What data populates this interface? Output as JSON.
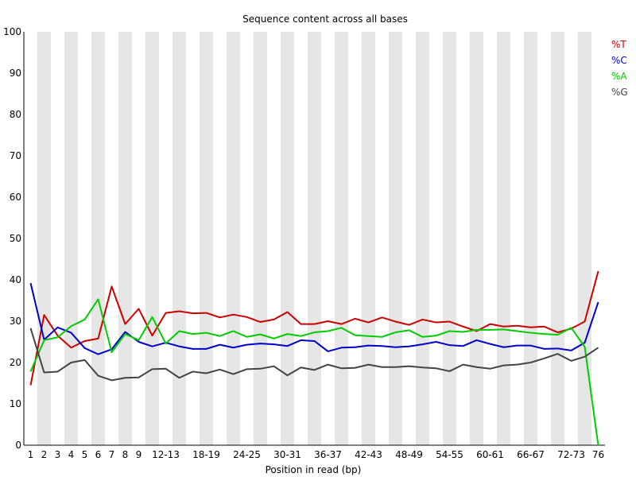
{
  "chart_data": {
    "type": "line",
    "title": "Sequence content across all bases",
    "xlabel": "Position in read (bp)",
    "ylabel": "",
    "ylim": [
      0,
      100
    ],
    "yticks": [
      0,
      10,
      20,
      30,
      40,
      50,
      60,
      70,
      80,
      90,
      100
    ],
    "grid": "alternating vertical bands",
    "legend_position": "top-right",
    "categories": [
      "1",
      "2",
      "3",
      "4",
      "5",
      "6",
      "7",
      "8",
      "9",
      "10-11",
      "12-13",
      "14-15",
      "16-17",
      "18-19",
      "20-21",
      "22-23",
      "24-25",
      "26-27",
      "28-29",
      "30-31",
      "32-33",
      "34-35",
      "36-37",
      "38-39",
      "40-41",
      "42-43",
      "44-45",
      "46-47",
      "48-49",
      "50-51",
      "52-53",
      "54-55",
      "56-57",
      "58-59",
      "60-61",
      "62-63",
      "64-65",
      "66-67",
      "68-69",
      "70-71",
      "72-73",
      "74-75",
      "76"
    ],
    "tick_labels": [
      "1",
      "2",
      "3",
      "4",
      "5",
      "6",
      "7",
      "8",
      "9",
      "12-13",
      "18-19",
      "24-25",
      "30-31",
      "36-37",
      "42-43",
      "48-49",
      "54-55",
      "60-61",
      "66-67",
      "72-73",
      "76"
    ],
    "series": [
      {
        "name": "%T",
        "color": "#cc0000",
        "values": [
          14.5,
          31.5,
          26.5,
          23.6,
          25.2,
          25.8,
          38.4,
          29.3,
          33.0,
          26.5,
          32.0,
          32.4,
          31.9,
          32.0,
          30.9,
          31.6,
          31.0,
          29.8,
          30.4,
          32.2,
          29.3,
          29.3,
          30.0,
          29.3,
          30.6,
          29.7,
          30.9,
          29.9,
          29.1,
          30.4,
          29.7,
          29.9,
          28.7,
          27.6,
          29.3,
          28.7,
          28.9,
          28.5,
          28.7,
          27.3,
          28.2,
          29.9,
          42.1
        ]
      },
      {
        "name": "%C",
        "color": "#0000cc",
        "values": [
          39.2,
          25.5,
          28.5,
          27.2,
          23.5,
          22.0,
          23.2,
          27.4,
          25.0,
          23.9,
          24.8,
          23.9,
          23.3,
          23.3,
          24.3,
          23.6,
          24.3,
          24.6,
          24.4,
          24.0,
          25.4,
          25.2,
          22.7,
          23.6,
          23.7,
          24.1,
          24.0,
          23.7,
          23.9,
          24.4,
          25.0,
          24.2,
          24.0,
          25.4,
          24.5,
          23.7,
          24.1,
          24.1,
          23.3,
          23.4,
          22.9,
          24.8,
          34.6
        ]
      },
      {
        "name": "%A",
        "color": "#00cc00",
        "values": [
          17.8,
          25.4,
          26.1,
          28.8,
          30.4,
          35.3,
          22.5,
          26.9,
          25.4,
          31.0,
          24.6,
          27.6,
          26.9,
          27.2,
          26.4,
          27.6,
          26.2,
          26.8,
          25.8,
          26.9,
          26.4,
          27.3,
          27.6,
          28.4,
          26.6,
          26.4,
          26.2,
          27.3,
          27.8,
          26.2,
          26.5,
          27.6,
          27.4,
          27.9,
          27.9,
          28.0,
          27.6,
          27.2,
          26.9,
          26.7,
          28.4,
          23.8,
          0.0
        ]
      },
      {
        "name": "%G",
        "color": "#444444",
        "values": [
          28.3,
          17.6,
          17.8,
          20.0,
          20.6,
          16.8,
          15.7,
          16.3,
          16.4,
          18.4,
          18.5,
          16.3,
          17.8,
          17.4,
          18.3,
          17.2,
          18.4,
          18.5,
          19.1,
          16.9,
          18.8,
          18.2,
          19.5,
          18.6,
          18.7,
          19.5,
          18.9,
          18.9,
          19.1,
          18.8,
          18.6,
          17.9,
          19.5,
          18.9,
          18.5,
          19.3,
          19.5,
          20.0,
          21.0,
          22.1,
          20.4,
          21.4,
          23.6
        ]
      }
    ]
  }
}
